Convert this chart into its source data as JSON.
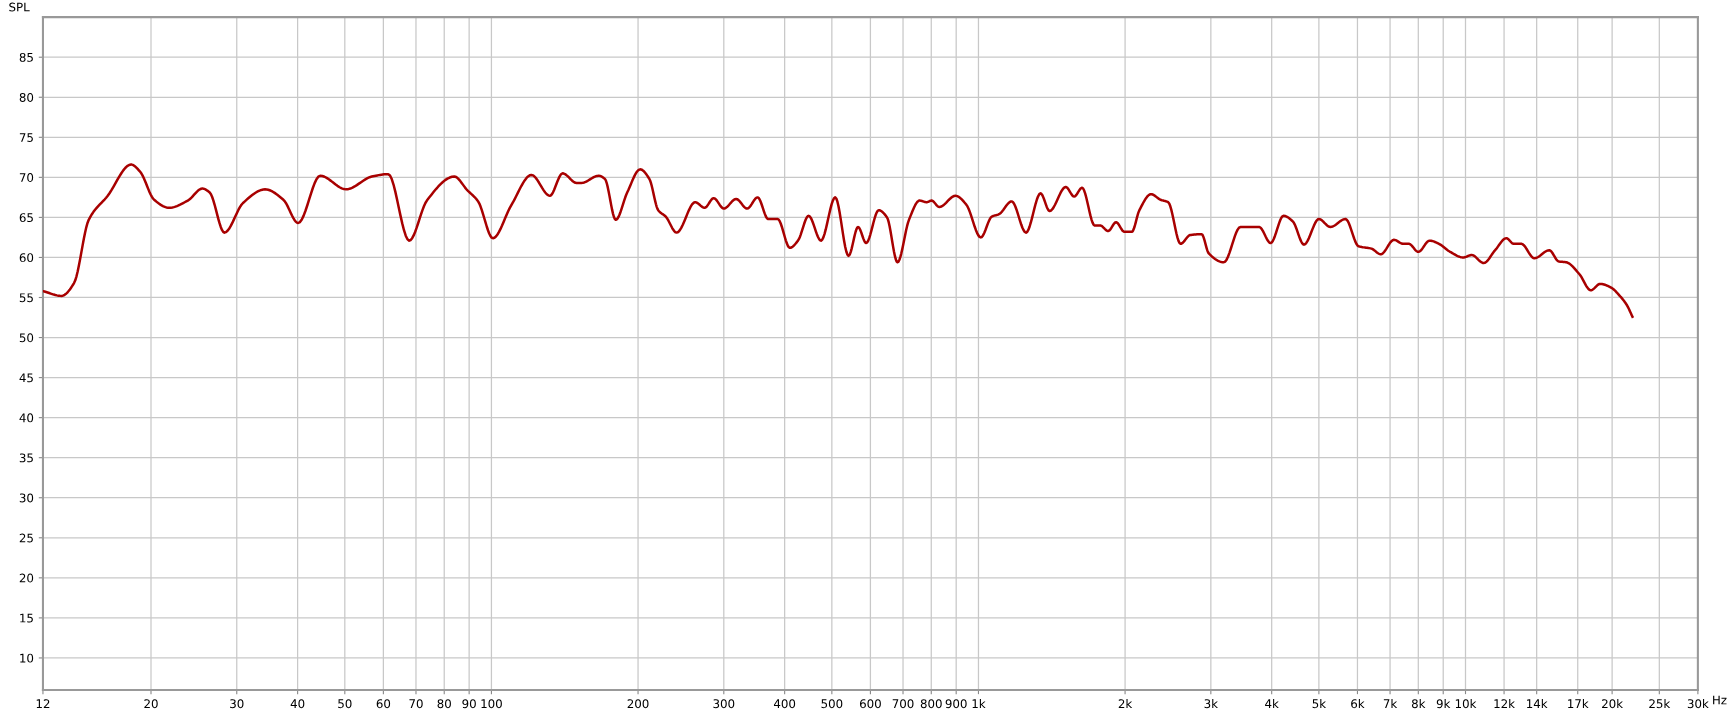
{
  "chart_data": {
    "type": "line",
    "ylabel": "SPL",
    "xlabel": "Hz",
    "log": "x",
    "grid": true,
    "marker": "none",
    "line_style": "solid",
    "xlim": [
      12,
      30000
    ],
    "ylim": [
      6,
      90
    ],
    "xticks": [
      12,
      20,
      30,
      40,
      50,
      60,
      70,
      80,
      90,
      100,
      200,
      300,
      400,
      500,
      600,
      700,
      800,
      900,
      {
        "value": 1000,
        "label": "1k"
      },
      {
        "value": 2000,
        "label": "2k"
      },
      {
        "value": 3000,
        "label": "3k"
      },
      {
        "value": 4000,
        "label": "4k"
      },
      {
        "value": 5000,
        "label": "5k"
      },
      {
        "value": 6000,
        "label": "6k"
      },
      {
        "value": 7000,
        "label": "7k"
      },
      {
        "value": 8000,
        "label": "8k"
      },
      {
        "value": 9000,
        "label": "9k"
      },
      {
        "value": 10000,
        "label": "10k"
      },
      {
        "value": 12000,
        "label": "12k"
      },
      {
        "value": 14000,
        "label": "14k"
      },
      {
        "value": 17000,
        "label": "17k"
      },
      {
        "value": 20000,
        "label": "20k"
      },
      {
        "value": 25000,
        "label": "25k"
      },
      {
        "value": 30000,
        "label": "30k"
      }
    ],
    "yticks": [
      10,
      15,
      20,
      25,
      30,
      35,
      40,
      45,
      50,
      55,
      60,
      65,
      70,
      75,
      80,
      85
    ],
    "series": [
      {
        "color": "#a80000",
        "x": [
          12,
          13.1,
          13.9,
          14.9,
          16.3,
          18.2,
          19.0,
          20.3,
          21.8,
          23.8,
          25.5,
          26.4,
          28.3,
          30.9,
          34.3,
          37.4,
          40.1,
          44.5,
          50.3,
          56.8,
          61.4,
          67.8,
          73.7,
          83.9,
          89.2,
          93.9,
          100.7,
          109.8,
          120.8,
          131.8,
          140,
          149.6,
          153,
          166,
          171,
          180,
          190,
          202,
          211,
          220,
          228,
          240,
          262,
          274,
          286,
          300,
          318,
          335,
          352,
          370,
          387,
          410,
          426,
          448,
          475,
          508,
          541,
          566,
          588,
          624,
          649,
          682,
          720,
          757,
          783,
          801,
          831,
          897,
          944,
          1011,
          1065,
          1102,
          1170,
          1252,
          1341,
          1400,
          1511,
          1572,
          1632,
          1732,
          1777,
          1846,
          1917,
          1993,
          2065,
          2140,
          2261,
          2366,
          2452,
          2600,
          2722,
          2872,
          2971,
          3190,
          3450,
          3770,
          3980,
          4230,
          4420,
          4660,
          5000,
          5280,
          5670,
          6030,
          6410,
          6700,
          7130,
          7450,
          7650,
          8000,
          8440,
          8820,
          9300,
          9890,
          10300,
          10900,
          11500,
          12130,
          12560,
          13020,
          13850,
          14860,
          15540,
          16100,
          17140,
          18080,
          18900,
          19950,
          20670,
          21420,
          22020
        ],
        "values": [
          55.8,
          55.2,
          56.8,
          64.7,
          67.7,
          71.6,
          70.7,
          67.2,
          66.2,
          67.1,
          68.6,
          68.1,
          63.1,
          66.8,
          68.5,
          67.2,
          64.3,
          70.2,
          68.5,
          70.1,
          70.4,
          62.1,
          67.1,
          70.1,
          68.4,
          67.0,
          62.4,
          66.5,
          70.3,
          67.7,
          70.5,
          69.3,
          69.3,
          70.2,
          69.8,
          64.7,
          68.1,
          71.0,
          69.8,
          65.9,
          65.1,
          63.1,
          66.9,
          66.2,
          67.4,
          66.1,
          67.3,
          66.1,
          67.5,
          64.8,
          64.8,
          61.2,
          62.1,
          65.2,
          62.1,
          67.5,
          60.2,
          63.8,
          61.8,
          65.9,
          65.0,
          59.4,
          64.7,
          67.1,
          66.9,
          67.1,
          66.3,
          67.7,
          66.6,
          62.5,
          65.1,
          65.4,
          67.0,
          63.1,
          68.0,
          65.8,
          68.8,
          67.6,
          68.7,
          64.0,
          64.0,
          63.3,
          64.4,
          63.2,
          63.2,
          65.9,
          67.9,
          67.2,
          66.9,
          61.7,
          62.8,
          62.9,
          60.5,
          59.4,
          63.8,
          63.8,
          61.8,
          65.2,
          64.5,
          61.6,
          64.8,
          63.8,
          64.8,
          61.4,
          61.1,
          60.4,
          62.2,
          61.7,
          61.7,
          60.7,
          62.1,
          61.7,
          60.7,
          60.0,
          60.3,
          59.3,
          60.9,
          62.4,
          61.7,
          61.7,
          59.9,
          60.9,
          59.5,
          59.4,
          57.9,
          55.9,
          56.7,
          56.2,
          55.3,
          54.1,
          52.6
        ]
      }
    ]
  }
}
